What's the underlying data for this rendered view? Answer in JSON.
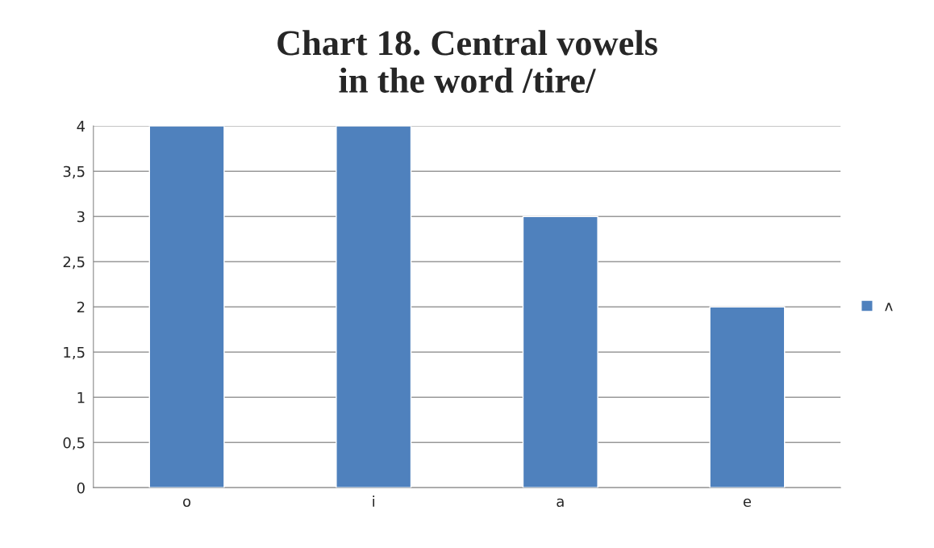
{
  "chart_data": {
    "type": "bar",
    "title": "Chart 18. Central vowels\nin the word /tire/",
    "categories": [
      "o",
      "i",
      "a",
      "e"
    ],
    "series": [
      {
        "name": "ʌ",
        "color": "#4f81bd",
        "values": [
          4,
          4,
          3,
          2
        ]
      }
    ],
    "ylim": [
      0,
      4
    ],
    "yticks": [
      0,
      {
        "value": 0.5,
        "label": "0,5"
      },
      1,
      {
        "value": 1.5,
        "label": "1,5"
      },
      2,
      {
        "value": 2.5,
        "label": "2,5"
      },
      3,
      {
        "value": 3.5,
        "label": "3,5"
      },
      4
    ],
    "grid": "y",
    "legend": "right"
  }
}
